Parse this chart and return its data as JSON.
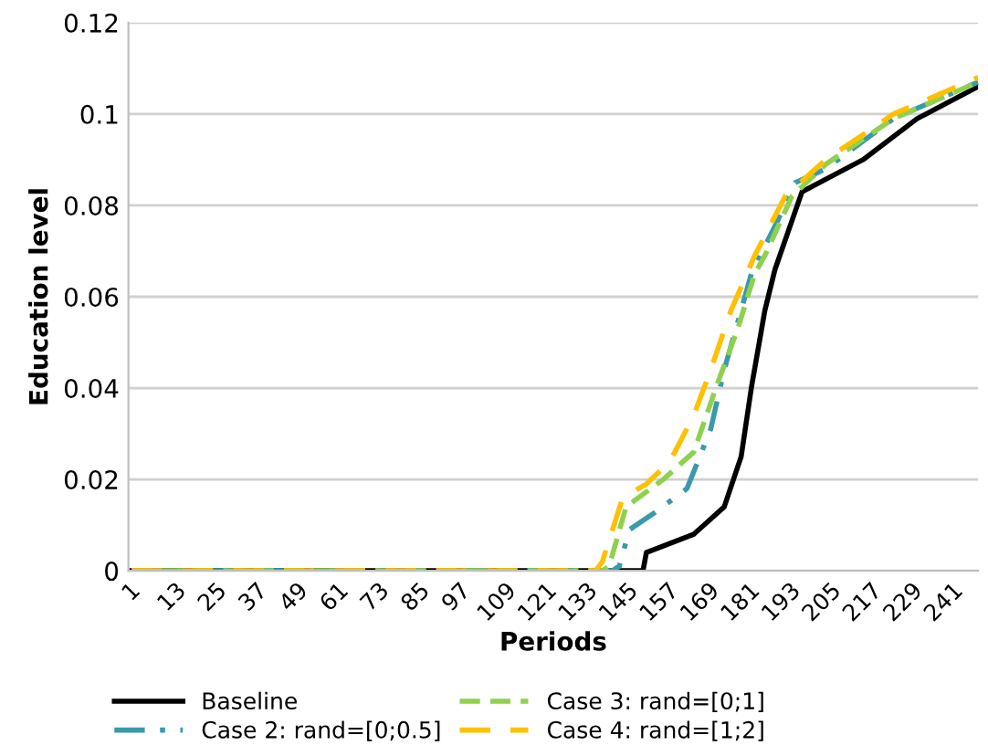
{
  "chart_data": {
    "type": "line",
    "xlabel": "Periods",
    "ylabel": "Education level",
    "xlim": [
      0,
      251
    ],
    "xticks": [
      1,
      13,
      25,
      37,
      49,
      61,
      73,
      85,
      97,
      109,
      121,
      133,
      145,
      157,
      169,
      181,
      193,
      205,
      217,
      229,
      241
    ],
    "ylim": [
      0,
      0.12
    ],
    "yticks": [
      0,
      0.02,
      0.04,
      0.06,
      0.08,
      0.1,
      0.12
    ],
    "grid": "y",
    "legend": "bottom",
    "series": [
      {
        "name": "Baseline",
        "color": "#000000",
        "line_style": "solid",
        "x": [
          1,
          152,
          153,
          167,
          176,
          181,
          184,
          188,
          191,
          199,
          217,
          233,
          251
        ],
        "values": [
          0,
          0,
          0.004,
          0.008,
          0.014,
          0.025,
          0.04,
          0.057,
          0.066,
          0.083,
          0.09,
          0.099,
          0.106
        ]
      },
      {
        "name": "Case 2: rand=[0;0.5]",
        "color": "#3a9aab",
        "line_style": "dashdot",
        "x": [
          1,
          143,
          145,
          148,
          156,
          165,
          172,
          176,
          181,
          184,
          192,
          197,
          206,
          226,
          251
        ],
        "values": [
          0,
          0,
          0.001,
          0.009,
          0.013,
          0.018,
          0.031,
          0.044,
          0.057,
          0.065,
          0.077,
          0.085,
          0.088,
          0.099,
          0.107
        ]
      },
      {
        "name": "Case 3: rand=[0;1]",
        "color": "#8fd14f",
        "line_style": "dashed",
        "x": [
          1,
          140,
          142,
          147,
          158,
          167,
          174,
          180,
          185,
          188,
          196,
          206,
          226,
          251
        ],
        "values": [
          0,
          0,
          0.001,
          0.014,
          0.02,
          0.026,
          0.041,
          0.053,
          0.065,
          0.069,
          0.082,
          0.089,
          0.099,
          0.107
        ]
      },
      {
        "name": "Case 4: rand=[1;2]",
        "color": "#ffc000",
        "line_style": "longdash",
        "x": [
          1,
          138,
          140,
          146,
          153,
          160,
          167,
          172,
          178,
          185,
          194,
          206,
          226,
          251
        ],
        "values": [
          0,
          0,
          0.002,
          0.016,
          0.019,
          0.024,
          0.034,
          0.044,
          0.057,
          0.069,
          0.082,
          0.09,
          0.1,
          0.108
        ]
      }
    ]
  }
}
